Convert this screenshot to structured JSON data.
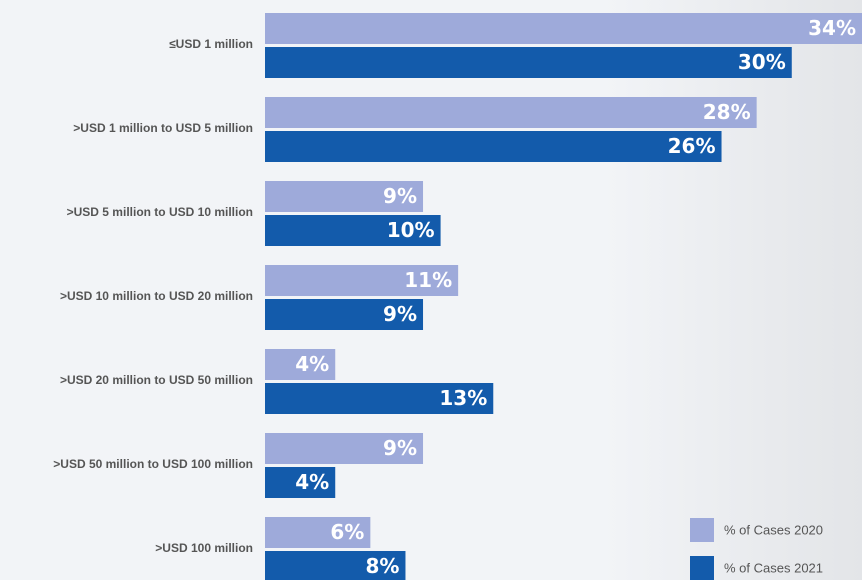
{
  "chart_data": {
    "type": "bar",
    "orientation": "horizontal",
    "categories": [
      "≤USD 1 million",
      ">USD 1 million to USD 5 million",
      ">USD 5 million to USD 10 million",
      ">USD 10 million to USD 20 million",
      ">USD 20 million to USD 50 million",
      ">USD 50 million to USD 100 million",
      ">USD 100 million"
    ],
    "series": [
      {
        "name": "% of Cases 2020",
        "color": "#9eaada",
        "values": [
          34,
          28,
          9,
          11,
          4,
          9,
          6
        ],
        "value_labels": [
          "34%",
          "28%",
          "9%",
          "11%",
          "4%",
          "9%",
          "6%"
        ]
      },
      {
        "name": "% of Cases 2021",
        "color": "#135bab",
        "values": [
          30,
          26,
          10,
          9,
          13,
          4,
          8
        ],
        "value_labels": [
          "30%",
          "26%",
          "10%",
          "9%",
          "13%",
          "4%",
          "8%"
        ]
      }
    ],
    "legend": "bottom-right"
  }
}
